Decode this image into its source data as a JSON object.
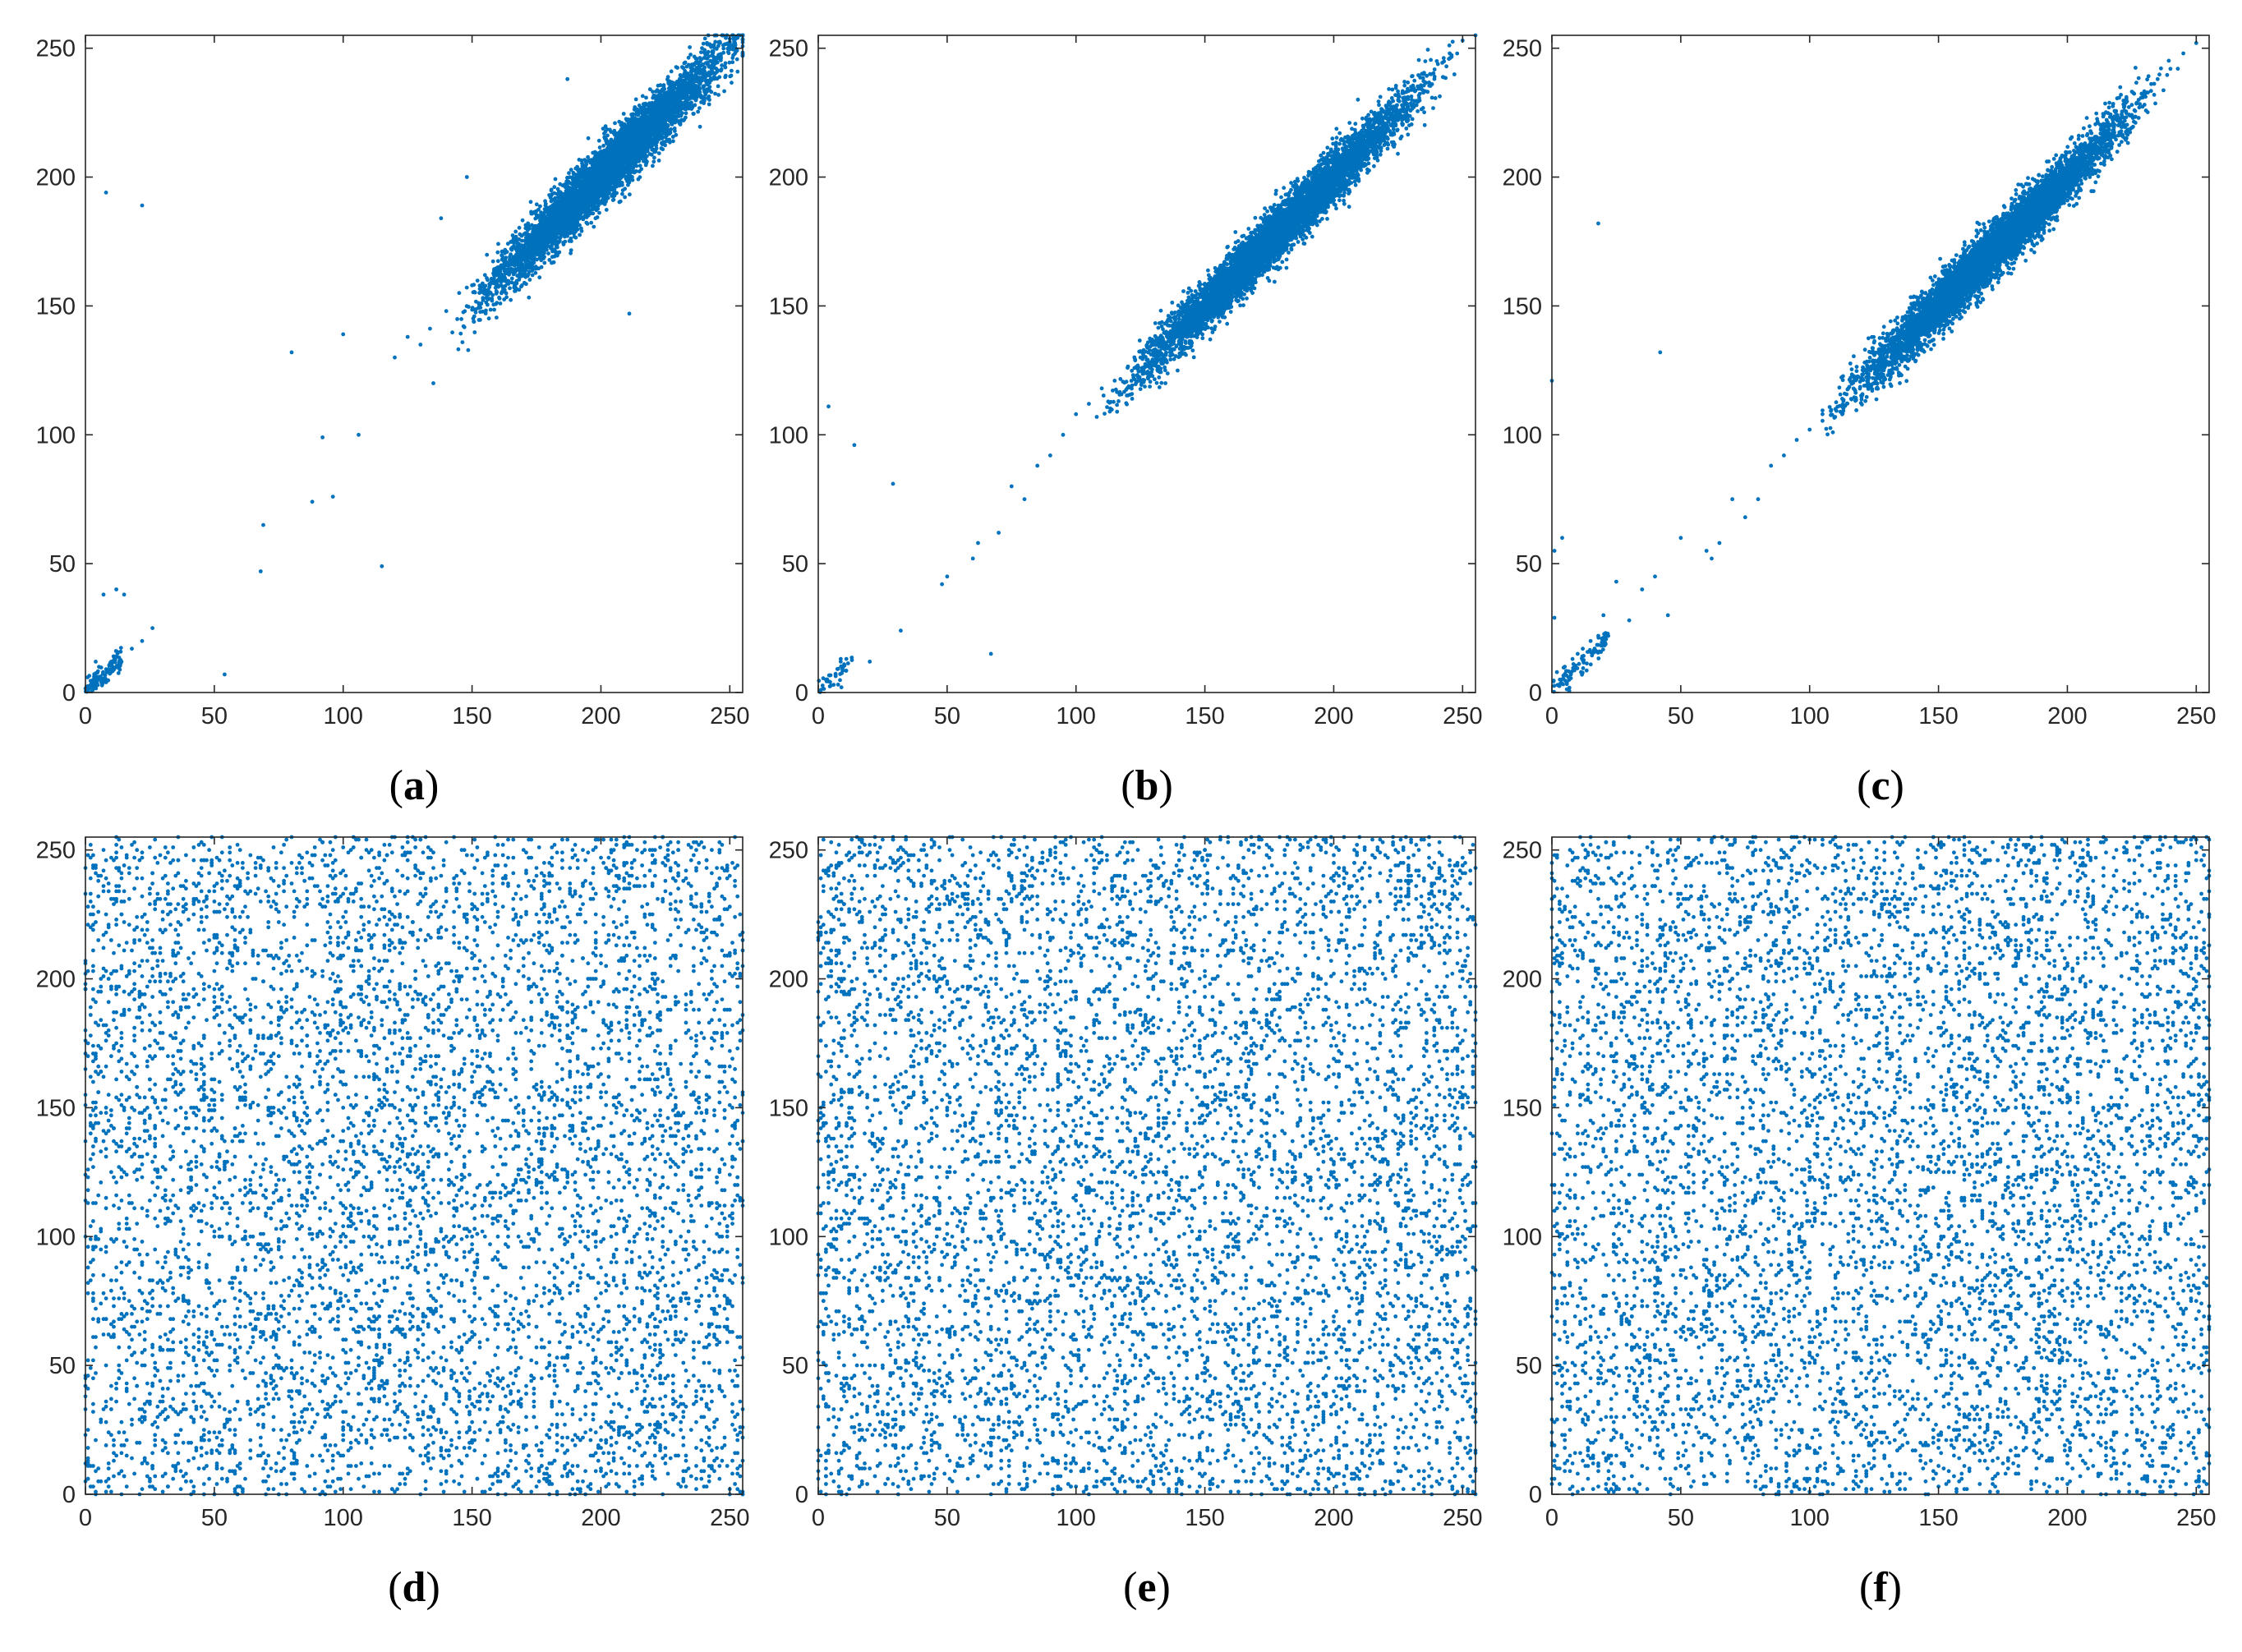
{
  "figure": {
    "point_color": "#0072BD",
    "axis_color": "#262626"
  },
  "chart_data": [
    {
      "type": "scatter",
      "caption": {
        "open": "(",
        "letter": "a",
        "close": ")"
      },
      "xlim": [
        0,
        255
      ],
      "ylim": [
        0,
        255
      ],
      "xticks": [
        0,
        50,
        100,
        150,
        200,
        250
      ],
      "yticks": [
        0,
        50,
        100,
        150,
        200,
        250
      ],
      "grid": false,
      "distribution": "correlated along y = x, dense cluster from about 130 to 255, sparse points near 0 to 30",
      "points": [
        [
          2,
          3
        ],
        [
          5,
          6
        ],
        [
          8,
          4
        ],
        [
          4,
          12
        ],
        [
          10,
          9
        ],
        [
          14,
          12
        ],
        [
          18,
          17
        ],
        [
          22,
          20
        ],
        [
          26,
          25
        ],
        [
          12,
          40
        ],
        [
          15,
          38
        ],
        [
          7,
          38
        ],
        [
          22,
          189
        ],
        [
          8,
          194
        ],
        [
          54,
          7
        ],
        [
          68,
          47
        ],
        [
          69,
          65
        ],
        [
          80,
          132
        ],
        [
          88,
          74
        ],
        [
          92,
          99
        ],
        [
          96,
          76
        ],
        [
          100,
          139
        ],
        [
          106,
          100
        ],
        [
          115,
          49
        ],
        [
          120,
          130
        ],
        [
          125,
          138
        ],
        [
          130,
          135
        ],
        [
          135,
          120
        ],
        [
          138,
          184
        ],
        [
          140,
          148
        ],
        [
          145,
          155
        ],
        [
          148,
          200
        ],
        [
          150,
          158
        ],
        [
          155,
          162
        ],
        [
          160,
          165
        ],
        [
          165,
          170
        ],
        [
          170,
          172
        ],
        [
          175,
          178
        ],
        [
          180,
          182
        ],
        [
          185,
          188
        ],
        [
          187,
          238
        ],
        [
          190,
          194
        ],
        [
          195,
          198
        ],
        [
          200,
          202
        ],
        [
          205,
          208
        ],
        [
          210,
          212
        ],
        [
          211,
          147
        ],
        [
          215,
          218
        ],
        [
          220,
          222
        ],
        [
          225,
          228
        ],
        [
          230,
          232
        ],
        [
          235,
          238
        ],
        [
          240,
          242
        ],
        [
          245,
          246
        ],
        [
          250,
          252
        ],
        [
          253,
          254
        ]
      ]
    },
    {
      "type": "scatter",
      "caption": {
        "open": "(",
        "letter": "b",
        "close": ")"
      },
      "xlim": [
        0,
        255
      ],
      "ylim": [
        0,
        255
      ],
      "xticks": [
        0,
        50,
        100,
        150,
        200,
        250
      ],
      "yticks": [
        0,
        50,
        100,
        150,
        200,
        250
      ],
      "grid": false,
      "distribution": "correlated along y = x, dense cluster from about 110 to 255, few points near 0",
      "points": [
        [
          1,
          1
        ],
        [
          3,
          5
        ],
        [
          6,
          3
        ],
        [
          9,
          2
        ],
        [
          4,
          111
        ],
        [
          14,
          96
        ],
        [
          20,
          12
        ],
        [
          29,
          81
        ],
        [
          32,
          24
        ],
        [
          48,
          42
        ],
        [
          50,
          45
        ],
        [
          60,
          52
        ],
        [
          62,
          58
        ],
        [
          67,
          15
        ],
        [
          70,
          62
        ],
        [
          75,
          80
        ],
        [
          80,
          75
        ],
        [
          85,
          88
        ],
        [
          90,
          92
        ],
        [
          95,
          100
        ],
        [
          100,
          108
        ],
        [
          105,
          112
        ],
        [
          110,
          118
        ],
        [
          115,
          121
        ],
        [
          120,
          126
        ],
        [
          125,
          130
        ],
        [
          130,
          136
        ],
        [
          135,
          140
        ],
        [
          140,
          145
        ],
        [
          145,
          150
        ],
        [
          150,
          155
        ],
        [
          155,
          160
        ],
        [
          160,
          165
        ],
        [
          165,
          170
        ],
        [
          170,
          175
        ],
        [
          175,
          180
        ],
        [
          180,
          185
        ],
        [
          185,
          190
        ],
        [
          190,
          195
        ],
        [
          195,
          200
        ],
        [
          200,
          205
        ],
        [
          205,
          210
        ],
        [
          210,
          215
        ],
        [
          215,
          220
        ],
        [
          220,
          225
        ],
        [
          225,
          230
        ],
        [
          230,
          235
        ],
        [
          235,
          240
        ],
        [
          240,
          245
        ],
        [
          245,
          248
        ],
        [
          250,
          253
        ],
        [
          255,
          255
        ]
      ]
    },
    {
      "type": "scatter",
      "caption": {
        "open": "(",
        "letter": "c",
        "close": ")"
      },
      "xlim": [
        0,
        255
      ],
      "ylim": [
        0,
        255
      ],
      "xticks": [
        0,
        50,
        100,
        150,
        200,
        250
      ],
      "yticks": [
        0,
        50,
        100,
        150,
        200,
        250
      ],
      "grid": false,
      "distribution": "correlated along y = x, dense cluster from about 110 to 250, elongated cluster near 5 to 20",
      "points": [
        [
          0,
          121
        ],
        [
          1,
          55
        ],
        [
          1,
          29
        ],
        [
          4,
          60
        ],
        [
          5,
          10
        ],
        [
          8,
          13
        ],
        [
          10,
          15
        ],
        [
          12,
          17
        ],
        [
          15,
          20
        ],
        [
          18,
          22
        ],
        [
          18,
          182
        ],
        [
          20,
          30
        ],
        [
          25,
          43
        ],
        [
          30,
          28
        ],
        [
          35,
          40
        ],
        [
          40,
          45
        ],
        [
          42,
          132
        ],
        [
          45,
          30
        ],
        [
          50,
          60
        ],
        [
          60,
          55
        ],
        [
          62,
          52
        ],
        [
          65,
          58
        ],
        [
          70,
          75
        ],
        [
          75,
          68
        ],
        [
          80,
          75
        ],
        [
          85,
          88
        ],
        [
          90,
          92
        ],
        [
          95,
          98
        ],
        [
          100,
          102
        ],
        [
          105,
          108
        ],
        [
          110,
          110
        ],
        [
          115,
          118
        ],
        [
          120,
          122
        ],
        [
          125,
          128
        ],
        [
          130,
          132
        ],
        [
          135,
          138
        ],
        [
          140,
          142
        ],
        [
          145,
          148
        ],
        [
          150,
          152
        ],
        [
          155,
          158
        ],
        [
          160,
          162
        ],
        [
          165,
          168
        ],
        [
          170,
          172
        ],
        [
          175,
          178
        ],
        [
          180,
          182
        ],
        [
          185,
          188
        ],
        [
          190,
          192
        ],
        [
          195,
          198
        ],
        [
          200,
          202
        ],
        [
          205,
          208
        ],
        [
          210,
          212
        ],
        [
          215,
          218
        ],
        [
          220,
          222
        ],
        [
          225,
          228
        ],
        [
          230,
          232
        ],
        [
          235,
          238
        ],
        [
          240,
          242
        ],
        [
          245,
          248
        ],
        [
          250,
          252
        ]
      ]
    },
    {
      "type": "scatter",
      "caption": {
        "open": "(",
        "letter": "d",
        "close": ")"
      },
      "xlim": [
        0,
        255
      ],
      "ylim": [
        0,
        255
      ],
      "xticks": [
        0,
        50,
        100,
        150,
        200,
        250
      ],
      "yticks": [
        0,
        50,
        100,
        150,
        200,
        250
      ],
      "grid": false,
      "distribution": "uniform over the whole 0 to 255 square",
      "random_points": 6500,
      "seed": 11
    },
    {
      "type": "scatter",
      "caption": {
        "open": "(",
        "letter": "e",
        "close": ")"
      },
      "xlim": [
        0,
        255
      ],
      "ylim": [
        0,
        255
      ],
      "xticks": [
        0,
        50,
        100,
        150,
        200,
        250
      ],
      "yticks": [
        0,
        50,
        100,
        150,
        200,
        250
      ],
      "grid": false,
      "distribution": "uniform over the whole 0 to 255 square",
      "random_points": 6500,
      "seed": 23
    },
    {
      "type": "scatter",
      "caption": {
        "open": "(",
        "letter": "f",
        "close": ")"
      },
      "xlim": [
        0,
        255
      ],
      "ylim": [
        0,
        255
      ],
      "xticks": [
        0,
        50,
        100,
        150,
        200,
        250
      ],
      "yticks": [
        0,
        50,
        100,
        150,
        200,
        250
      ],
      "grid": false,
      "distribution": "uniform over the whole 0 to 255 square",
      "random_points": 6500,
      "seed": 37
    }
  ]
}
